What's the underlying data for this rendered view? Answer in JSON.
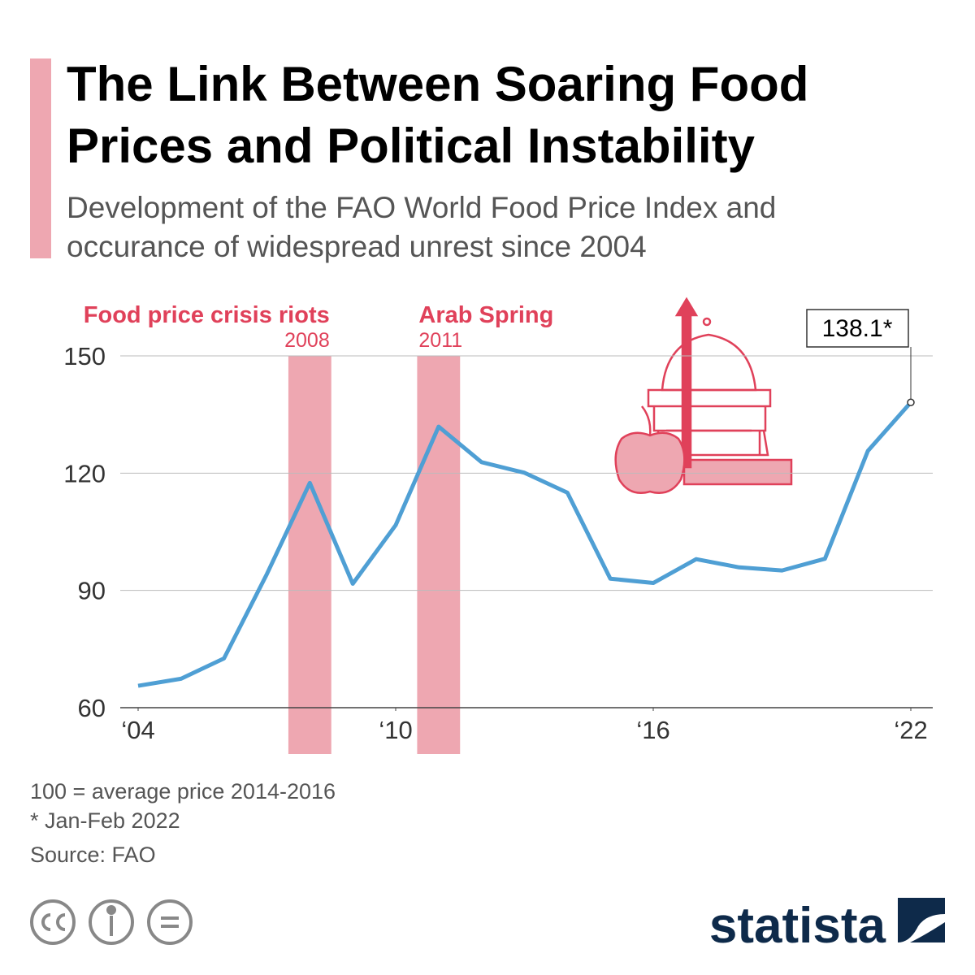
{
  "chart_data": {
    "type": "line",
    "title": "The Link Between Soaring Food Prices and Political Instability",
    "subtitle": [
      "Development of the FAO World Food Price Index and",
      "occurance of widespread unrest since 2004"
    ],
    "x": [
      2004,
      2005,
      2006,
      2007,
      2008,
      2009,
      2010,
      2011,
      2012,
      2013,
      2014,
      2015,
      2016,
      2017,
      2018,
      2019,
      2020,
      2021,
      2022
    ],
    "series": [
      {
        "color": "#4f9fd4",
        "values": [
          65.6,
          67.4,
          72.6,
          94.2,
          117.5,
          91.7,
          106.7,
          131.9,
          122.8,
          120.1,
          115.0,
          93.0,
          91.9,
          98.0,
          95.9,
          95.1,
          98.1,
          125.7,
          138.1
        ]
      }
    ],
    "last_label": "138.1*",
    "xlim": [
      2004,
      2022
    ],
    "xticks": [
      {
        "value": 2004,
        "label": "‘04"
      },
      {
        "value": 2010,
        "label": "‘10"
      },
      {
        "value": 2016,
        "label": "‘16"
      },
      {
        "value": 2022,
        "label": "‘22"
      }
    ],
    "ylim": [
      60,
      150
    ],
    "yticks": [
      60,
      90,
      120,
      150
    ],
    "grid": true,
    "events": [
      {
        "label": "Food price crisis riots",
        "year": 2008,
        "color": "#eea7b1"
      },
      {
        "label": "Arab Spring",
        "year": 2011,
        "color": "#eea7b1"
      }
    ],
    "notes": [
      "100 = average price 2014-2016",
      "* Jan-Feb 2022",
      "Source: FAO"
    ],
    "brand": "statista"
  }
}
